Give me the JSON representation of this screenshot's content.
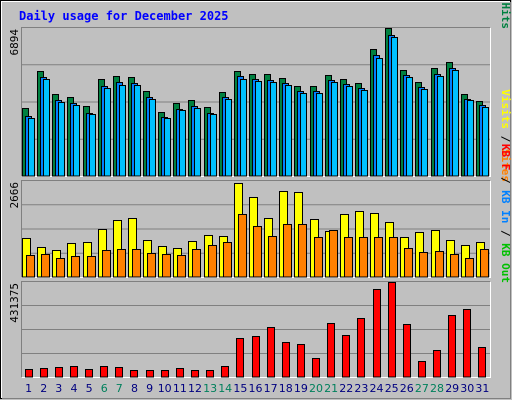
{
  "chart_data": {
    "type": "bar",
    "title": "Daily usage for December 2025",
    "categories": [
      "1",
      "2",
      "3",
      "4",
      "5",
      "6",
      "7",
      "8",
      "9",
      "10",
      "11",
      "12",
      "13",
      "14",
      "15",
      "16",
      "17",
      "18",
      "19",
      "20",
      "21",
      "22",
      "23",
      "24",
      "25",
      "26",
      "27",
      "28",
      "29",
      "30",
      "31"
    ],
    "weekend_days": [
      "6",
      "7",
      "13",
      "14",
      "20",
      "21",
      "27",
      "28"
    ],
    "colors": {
      "hits": "#008040",
      "files": "#0080ff",
      "pages": "#00c0ff",
      "visits": "#ffff00",
      "sites": "#ff8000",
      "kb_out": "#00c000",
      "kb_in": "#0080ff",
      "kb_f": "#ff0000",
      "title": "#0000ff",
      "weekday_tick": "#000080",
      "weekend_tick": "#00805c"
    },
    "panels": [
      {
        "ymax_label": "6894",
        "legend": [
          {
            "text": "Pages",
            "color": "#00c0ff"
          },
          {
            "text": " / ",
            "color": "#000000"
          },
          {
            "text": "Files",
            "color": "#0080ff"
          },
          {
            "text": " / ",
            "color": "#000000"
          },
          {
            "text": "Hits",
            "color": "#008040"
          }
        ],
        "ylim": [
          0,
          6894
        ],
        "series": [
          {
            "name": "Hits",
            "color": "#008040",
            "values": [
              3150,
              4880,
              3840,
              3700,
              3240,
              4520,
              4640,
              4600,
              3960,
              3000,
              3390,
              3560,
              3200,
              3930,
              4910,
              4760,
              4740,
              4570,
              4170,
              4210,
              4720,
              4520,
              4350,
              5930,
              6894,
              4950,
              4400,
              5010,
              5300,
              3820,
              3480
            ]
          },
          {
            "name": "Files",
            "color": "#0080ff",
            "values": [
              2800,
              4600,
              3540,
              3400,
              2950,
              4200,
              4360,
              4350,
              3700,
              2750,
              3130,
              3280,
              2950,
              3700,
              4650,
              4510,
              4490,
              4330,
              3950,
              3950,
              4480,
              4290,
              4120,
              5620,
              6590,
              4700,
              4160,
              4760,
              5030,
              3600,
              3300
            ]
          },
          {
            "name": "Pages",
            "color": "#00c0ff",
            "values": [
              2720,
              4500,
              3460,
              3320,
              2880,
              4100,
              4260,
              4250,
              3600,
              2690,
              3070,
              3190,
              2890,
              3600,
              4540,
              4420,
              4380,
              4250,
              3880,
              3850,
              4390,
              4200,
              4020,
              5500,
              6470,
              4600,
              4070,
              4650,
              4940,
              3520,
              3230
            ]
          }
        ]
      },
      {
        "ymax_label": "2666",
        "legend": [
          {
            "text": "Visits",
            "color": "#ffff00"
          },
          {
            "text": " / ",
            "color": "#000000"
          },
          {
            "text": "Sites",
            "color": "#ff8000"
          }
        ],
        "ylim": [
          0,
          2666
        ],
        "series": [
          {
            "name": "Visits",
            "color": "#ffff00",
            "values": [
              1070,
              840,
              760,
              940,
              970,
              1340,
              1590,
              1630,
              1020,
              860,
              810,
              1000,
              1160,
              1150,
              2600,
              2210,
              1640,
              2380,
              2360,
              1600,
              1290,
              1740,
              1840,
              1780,
              1540,
              1100,
              1260,
              1310,
              1030,
              900,
              980
            ]
          },
          {
            "name": "Sites",
            "color": "#ff8000",
            "values": [
              600,
              650,
              520,
              590,
              580,
              740,
              790,
              780,
              680,
              650,
              600,
              780,
              880,
              960,
              1760,
              1410,
              1130,
              1480,
              1470,
              1110,
              1310,
              1110,
              1110,
              1110,
              1100,
              810,
              700,
              730,
              650,
              530,
              790
            ]
          }
        ]
      },
      {
        "ymax_label": "431375",
        "legend": [
          {
            "text": "KB F",
            "color": "#ff0000"
          },
          {
            "text": " / ",
            "color": "#000000"
          },
          {
            "text": "KB In",
            "color": "#0080ff"
          },
          {
            "text": " / ",
            "color": "#000000"
          },
          {
            "text": "KB Out",
            "color": "#00c000"
          }
        ],
        "ylim": [
          0,
          431375
        ],
        "series": [
          {
            "name": "KB F",
            "color": "#ff0000",
            "values": [
              35000,
              40000,
              45000,
              52000,
              35000,
              52000,
              45000,
              30000,
              30000,
              30000,
              40000,
              30000,
              30000,
              52000,
              177000,
              185000,
              226000,
              160000,
              150000,
              88000,
              243000,
              190000,
              270000,
              398000,
              431375,
              240000,
              73000,
              122000,
              282000,
              307000,
              138000
            ]
          }
        ]
      }
    ]
  }
}
